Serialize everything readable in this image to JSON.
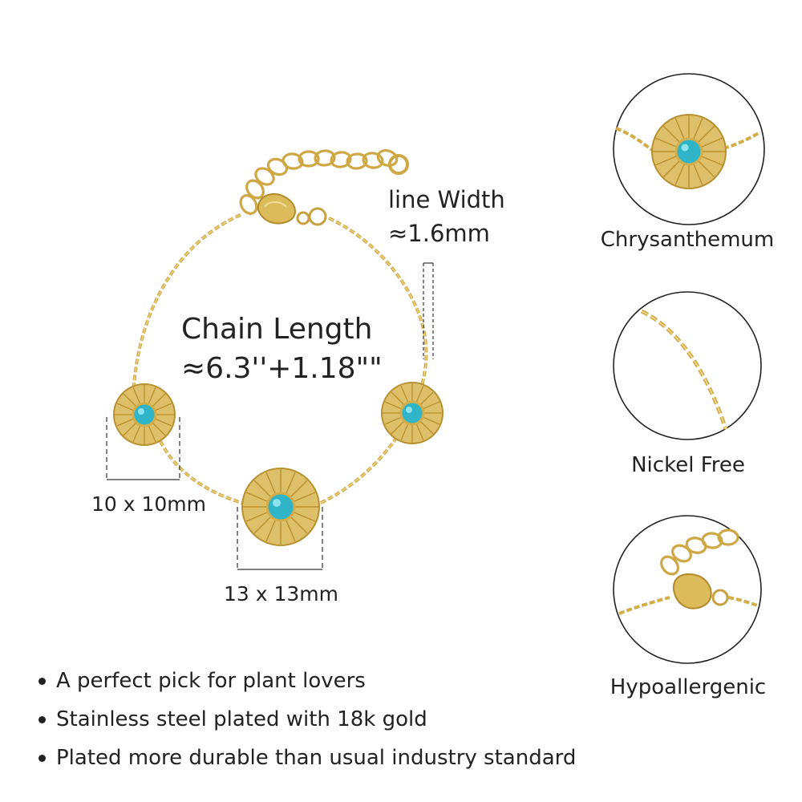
{
  "measurements": {
    "line_width_label": "line Width",
    "line_width_value": "≈1.6mm",
    "chain_length_label": "Chain Length",
    "chain_length_value": "≈6.3''+1.18\"\"",
    "small_charm_size": "10 x 10mm",
    "large_charm_size": "13 x 13mm"
  },
  "features": [
    {
      "label": "Chrysanthemum",
      "icon": "chrysanthemum-charm-closeup"
    },
    {
      "label": "Nickel Free",
      "icon": "chain-closeup"
    },
    {
      "label": "Hypoallergenic",
      "icon": "lobster-clasp-closeup"
    }
  ],
  "bullets": [
    "A perfect pick for plant lovers",
    "Stainless steel plated with 18k gold",
    "Plated more durable than usual industry standard"
  ],
  "colors": {
    "gold": "#d9b652",
    "gold_dark": "#b8902f",
    "turquoise": "#2fb4c8",
    "background": "#ffffff",
    "text": "#222222"
  }
}
